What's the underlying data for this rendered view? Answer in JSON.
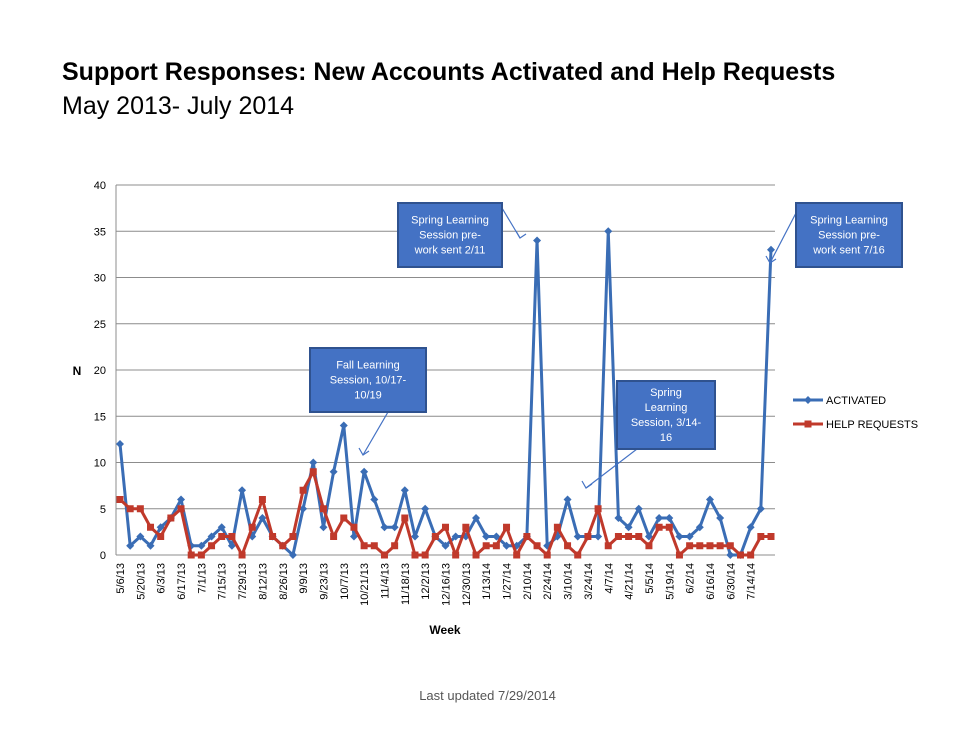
{
  "title": "Support Responses: New Accounts Activated and Help Requests",
  "subtitle": "May 2013- July 2014",
  "footer": "Last updated 7/29/2014",
  "colors": {
    "activated": "#3a6db5",
    "help": "#c0392b",
    "annotation_fill": "#4472c4",
    "annotation_border": "#2f528f"
  },
  "chart_data": {
    "type": "line",
    "xlabel": "Week",
    "ylabel": "N",
    "ylim": [
      0,
      40
    ],
    "yticks": [
      0,
      5,
      10,
      15,
      20,
      25,
      30,
      35,
      40
    ],
    "grid": true,
    "legend_position": "right",
    "x_tick_labels": [
      "5/6/13",
      "5/20/13",
      "6/3/13",
      "6/17/13",
      "7/1/13",
      "7/15/13",
      "7/29/13",
      "8/12/13",
      "8/26/13",
      "9/9/13",
      "9/23/13",
      "10/7/13",
      "10/21/13",
      "11/4/13",
      "11/18/13",
      "12/2/13",
      "12/16/13",
      "12/30/13",
      "1/13/14",
      "1/27/14",
      "2/10/14",
      "2/24/14",
      "3/10/14",
      "3/24/14",
      "4/7/14",
      "4/21/14",
      "5/5/14",
      "5/19/14",
      "6/2/14",
      "6/16/14",
      "6/30/14",
      "7/14/14"
    ],
    "series": [
      {
        "name": "ACTIVATED",
        "color": "#3a6db5",
        "values": [
          12,
          1,
          2,
          1,
          3,
          4,
          6,
          1,
          1,
          2,
          3,
          1,
          7,
          2,
          4,
          2,
          1,
          0,
          5,
          10,
          3,
          9,
          14,
          2,
          9,
          6,
          3,
          3,
          7,
          2,
          5,
          2,
          1,
          2,
          2,
          4,
          2,
          2,
          1,
          1,
          2,
          34,
          1,
          2,
          6,
          2,
          2,
          2,
          35,
          4,
          3,
          5,
          2,
          4,
          4,
          2,
          2,
          3,
          6,
          4,
          0,
          0,
          3,
          5,
          33
        ]
      },
      {
        "name": "HELP REQUESTS",
        "color": "#c0392b",
        "values": [
          6,
          5,
          5,
          3,
          2,
          4,
          5,
          0,
          0,
          1,
          2,
          2,
          0,
          3,
          6,
          2,
          1,
          2,
          7,
          9,
          5,
          2,
          4,
          3,
          1,
          1,
          0,
          1,
          4,
          0,
          0,
          2,
          3,
          0,
          3,
          0,
          1,
          1,
          3,
          0,
          2,
          1,
          0,
          3,
          1,
          0,
          2,
          5,
          1,
          2,
          2,
          2,
          1,
          3,
          3,
          0,
          1,
          1,
          1,
          1,
          1,
          0,
          0,
          2,
          2
        ]
      }
    ],
    "annotations": [
      {
        "text_lines": [
          "Fall Learning",
          "Session, 10/17-",
          "10/19"
        ]
      },
      {
        "text_lines": [
          "Spring Learning",
          "Session pre-",
          "work sent 2/11"
        ]
      },
      {
        "text_lines": [
          "Spring",
          "Learning",
          "Session, 3/14-",
          "16"
        ]
      },
      {
        "text_lines": [
          "Spring Learning",
          "Session pre-",
          "work sent 7/16"
        ]
      }
    ]
  }
}
